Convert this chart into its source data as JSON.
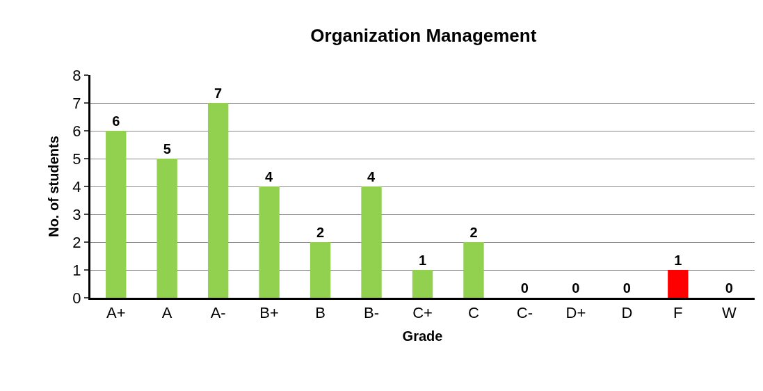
{
  "chart_data": {
    "type": "bar",
    "title": "Organization Management",
    "xlabel": "Grade",
    "ylabel": "No. of students",
    "categories": [
      "A+",
      "A",
      "A-",
      "B+",
      "B",
      "B-",
      "C+",
      "C",
      "C-",
      "D+",
      "D",
      "F",
      "W"
    ],
    "values": [
      6,
      5,
      7,
      4,
      2,
      4,
      1,
      2,
      0,
      0,
      0,
      1,
      0
    ],
    "colors": [
      "#92d050",
      "#92d050",
      "#92d050",
      "#92d050",
      "#92d050",
      "#92d050",
      "#92d050",
      "#92d050",
      "#92d050",
      "#92d050",
      "#92d050",
      "#ff0000",
      "#92d050"
    ],
    "ylim": [
      0,
      8
    ],
    "yticks": [
      0,
      1,
      2,
      3,
      4,
      5,
      6,
      7,
      8
    ],
    "grid": "y",
    "data_labels": true,
    "legend": false
  }
}
